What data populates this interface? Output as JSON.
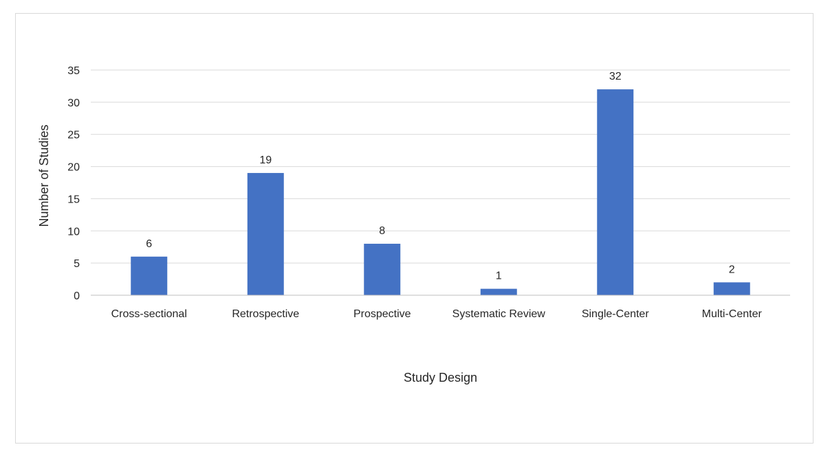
{
  "chart_data": {
    "type": "bar",
    "title": "",
    "xlabel": "Study Design",
    "ylabel": "Number of Studies",
    "categories": [
      "Cross-sectional",
      "Retrospective",
      "Prospective",
      "Systematic Review",
      "Single-Center",
      "Multi-Center"
    ],
    "values": [
      6,
      19,
      8,
      1,
      32,
      2
    ],
    "ylim": [
      0,
      35
    ],
    "yticks": [
      0,
      5,
      10,
      15,
      20,
      25,
      30,
      35
    ],
    "grid": true,
    "data_labels": true,
    "legend": "none"
  },
  "colors": {
    "bar": "#4472c4",
    "grid": "#d9d9d9",
    "axis": "#bfbfbf",
    "text": "#262626"
  }
}
